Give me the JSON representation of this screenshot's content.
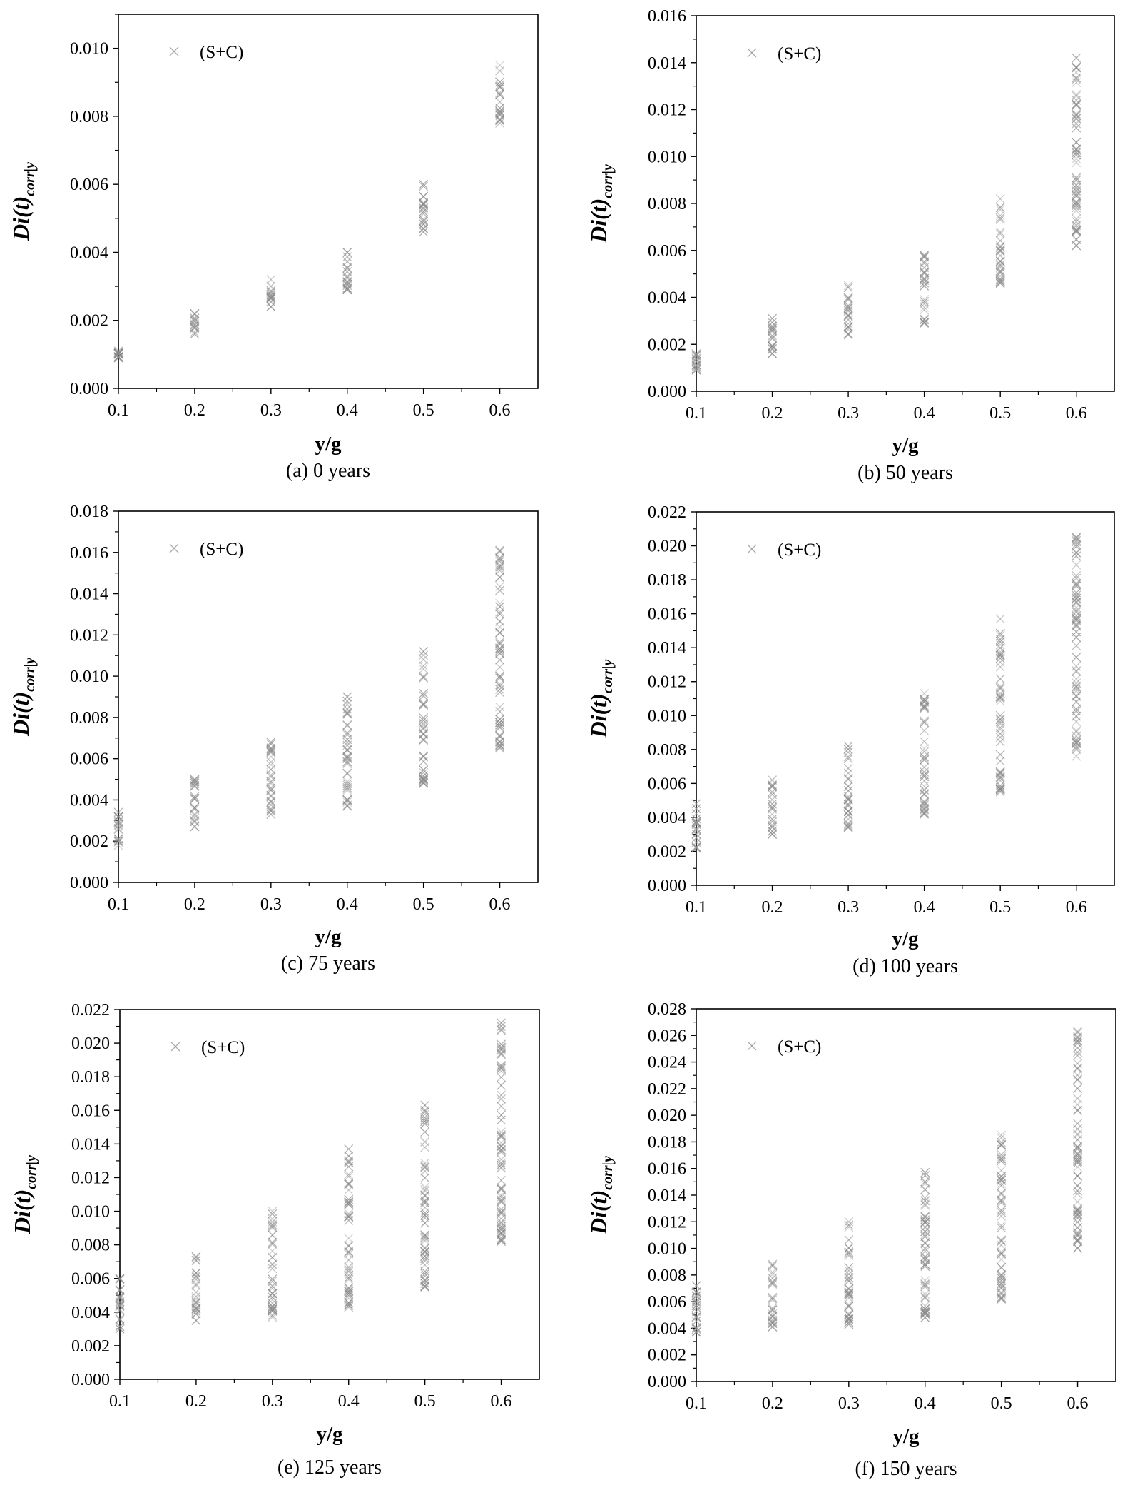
{
  "panel_captions": [
    "(a) 0 years",
    "(b) 50 years",
    "(c) 75 years",
    "(d) 100 years",
    "(e) 125 years",
    "(f) 150 years"
  ],
  "colors": {
    "marker": "#8a8a8a",
    "axis": "#000000"
  },
  "chart_data": [
    {
      "type": "scatter",
      "title": "(a) 0 years",
      "xlabel": "y/g",
      "ylabel": "Di(t)corr|y",
      "series": [
        {
          "name": "(S+C)",
          "marker": "x"
        }
      ],
      "xlim": [
        0.1,
        0.65
      ],
      "ylim": [
        0,
        0.011
      ],
      "x_ticks": [
        0.1,
        0.2,
        0.3,
        0.4,
        0.5,
        0.6
      ],
      "y_ticks": [
        0.0,
        0.002,
        0.004,
        0.006,
        0.008,
        0.01
      ],
      "y_tick_labels": [
        "0.000",
        "0.002",
        "0.004",
        "0.006",
        "0.008",
        "0.010"
      ],
      "legend": "top-left",
      "grid": false,
      "groups": [
        {
          "x": 0.1,
          "min": 0.0009,
          "max": 0.0011
        },
        {
          "x": 0.2,
          "min": 0.0016,
          "max": 0.0022
        },
        {
          "x": 0.3,
          "min": 0.0024,
          "max": 0.0032
        },
        {
          "x": 0.4,
          "min": 0.0029,
          "max": 0.004
        },
        {
          "x": 0.5,
          "min": 0.0046,
          "max": 0.006
        },
        {
          "x": 0.6,
          "min": 0.0078,
          "max": 0.0095
        }
      ]
    },
    {
      "type": "scatter",
      "title": "(b) 50 years",
      "xlabel": "y/g",
      "ylabel": "Di(t)corr|y",
      "series": [
        {
          "name": "(S+C)",
          "marker": "x"
        }
      ],
      "xlim": [
        0.1,
        0.65
      ],
      "ylim": [
        0,
        0.016
      ],
      "x_ticks": [
        0.1,
        0.2,
        0.3,
        0.4,
        0.5,
        0.6
      ],
      "y_ticks": [
        0.0,
        0.002,
        0.004,
        0.006,
        0.008,
        0.01,
        0.012,
        0.014,
        0.016
      ],
      "y_tick_labels": [
        "0.000",
        "0.002",
        "0.004",
        "0.006",
        "0.008",
        "0.010",
        "0.012",
        "0.014",
        "0.016"
      ],
      "legend": "top-left",
      "grid": false,
      "groups": [
        {
          "x": 0.1,
          "min": 0.0009,
          "max": 0.0016
        },
        {
          "x": 0.2,
          "min": 0.0016,
          "max": 0.0031
        },
        {
          "x": 0.3,
          "min": 0.0024,
          "max": 0.0045
        },
        {
          "x": 0.4,
          "min": 0.0029,
          "max": 0.0058
        },
        {
          "x": 0.5,
          "min": 0.0046,
          "max": 0.0082
        },
        {
          "x": 0.6,
          "min": 0.0062,
          "max": 0.0142
        }
      ]
    },
    {
      "type": "scatter",
      "title": "(c) 75 years",
      "xlabel": "y/g",
      "ylabel": "Di(t)corr|y",
      "series": [
        {
          "name": "(S+C)",
          "marker": "x"
        }
      ],
      "xlim": [
        0.1,
        0.65
      ],
      "ylim": [
        0,
        0.018
      ],
      "x_ticks": [
        0.1,
        0.2,
        0.3,
        0.4,
        0.5,
        0.6
      ],
      "y_ticks": [
        0.0,
        0.002,
        0.004,
        0.006,
        0.008,
        0.01,
        0.012,
        0.014,
        0.016,
        0.018
      ],
      "y_tick_labels": [
        "0.000",
        "0.002",
        "0.004",
        "0.006",
        "0.008",
        "0.010",
        "0.012",
        "0.014",
        "0.016",
        "0.018"
      ],
      "legend": "top-left",
      "grid": false,
      "groups": [
        {
          "x": 0.1,
          "min": 0.0018,
          "max": 0.0034
        },
        {
          "x": 0.2,
          "min": 0.0027,
          "max": 0.005
        },
        {
          "x": 0.3,
          "min": 0.0033,
          "max": 0.0068
        },
        {
          "x": 0.4,
          "min": 0.0037,
          "max": 0.009
        },
        {
          "x": 0.5,
          "min": 0.0048,
          "max": 0.0112
        },
        {
          "x": 0.6,
          "min": 0.0065,
          "max": 0.0161
        }
      ]
    },
    {
      "type": "scatter",
      "title": "(d) 100 years",
      "xlabel": "y/g",
      "ylabel": "Di(t)corr|y",
      "series": [
        {
          "name": "(S+C)",
          "marker": "x"
        }
      ],
      "xlim": [
        0.1,
        0.65
      ],
      "ylim": [
        0,
        0.022
      ],
      "x_ticks": [
        0.1,
        0.2,
        0.3,
        0.4,
        0.5,
        0.6
      ],
      "y_ticks": [
        0.0,
        0.002,
        0.004,
        0.006,
        0.008,
        0.01,
        0.012,
        0.014,
        0.016,
        0.018,
        0.02,
        0.022
      ],
      "y_tick_labels": [
        "0.000",
        "0.002",
        "0.004",
        "0.006",
        "0.008",
        "0.010",
        "0.012",
        "0.014",
        "0.016",
        "0.018",
        "0.020",
        "0.022"
      ],
      "legend": "top-left",
      "grid": false,
      "groups": [
        {
          "x": 0.1,
          "min": 0.0022,
          "max": 0.0048
        },
        {
          "x": 0.2,
          "min": 0.003,
          "max": 0.0062
        },
        {
          "x": 0.3,
          "min": 0.0034,
          "max": 0.0082
        },
        {
          "x": 0.4,
          "min": 0.0042,
          "max": 0.0113
        },
        {
          "x": 0.5,
          "min": 0.0055,
          "max": 0.0157
        },
        {
          "x": 0.6,
          "min": 0.0076,
          "max": 0.0205
        }
      ]
    },
    {
      "type": "scatter",
      "title": "(e) 125 years",
      "xlabel": "y/g",
      "ylabel": "Di(t)corr|y",
      "series": [
        {
          "name": "(S+C)",
          "marker": "x"
        }
      ],
      "xlim": [
        0.1,
        0.65
      ],
      "ylim": [
        0,
        0.022
      ],
      "x_ticks": [
        0.1,
        0.2,
        0.3,
        0.4,
        0.5,
        0.6
      ],
      "y_ticks": [
        0.0,
        0.002,
        0.004,
        0.006,
        0.008,
        0.01,
        0.012,
        0.014,
        0.016,
        0.018,
        0.02,
        0.022
      ],
      "y_tick_labels": [
        "0.000",
        "0.002",
        "0.004",
        "0.006",
        "0.008",
        "0.010",
        "0.012",
        "0.014",
        "0.016",
        "0.018",
        "0.020",
        "0.022"
      ],
      "legend": "top-left",
      "grid": false,
      "groups": [
        {
          "x": 0.1,
          "min": 0.003,
          "max": 0.006
        },
        {
          "x": 0.2,
          "min": 0.0035,
          "max": 0.0073
        },
        {
          "x": 0.3,
          "min": 0.0037,
          "max": 0.01
        },
        {
          "x": 0.4,
          "min": 0.0043,
          "max": 0.0137
        },
        {
          "x": 0.5,
          "min": 0.0055,
          "max": 0.0163
        },
        {
          "x": 0.6,
          "min": 0.0082,
          "max": 0.0212
        }
      ]
    },
    {
      "type": "scatter",
      "title": "(f) 150 years",
      "xlabel": "y/g",
      "ylabel": "Di(t)corr|y",
      "series": [
        {
          "name": "(S+C)",
          "marker": "x"
        }
      ],
      "xlim": [
        0.1,
        0.65
      ],
      "ylim": [
        0,
        0.028
      ],
      "x_ticks": [
        0.1,
        0.2,
        0.3,
        0.4,
        0.5,
        0.6
      ],
      "y_ticks": [
        0.0,
        0.002,
        0.004,
        0.006,
        0.008,
        0.01,
        0.012,
        0.014,
        0.016,
        0.018,
        0.02,
        0.022,
        0.024,
        0.026,
        0.028
      ],
      "y_tick_labels": [
        "0.000",
        "0.002",
        "0.004",
        "0.006",
        "0.008",
        "0.010",
        "0.012",
        "0.014",
        "0.016",
        "0.018",
        "0.020",
        "0.022",
        "0.024",
        "0.026",
        "0.028"
      ],
      "legend": "top-left",
      "grid": false,
      "groups": [
        {
          "x": 0.1,
          "min": 0.0037,
          "max": 0.0072
        },
        {
          "x": 0.2,
          "min": 0.0041,
          "max": 0.0088
        },
        {
          "x": 0.3,
          "min": 0.0043,
          "max": 0.012
        },
        {
          "x": 0.4,
          "min": 0.0048,
          "max": 0.0157
        },
        {
          "x": 0.5,
          "min": 0.0062,
          "max": 0.0185
        },
        {
          "x": 0.6,
          "min": 0.01,
          "max": 0.0263
        }
      ]
    }
  ]
}
